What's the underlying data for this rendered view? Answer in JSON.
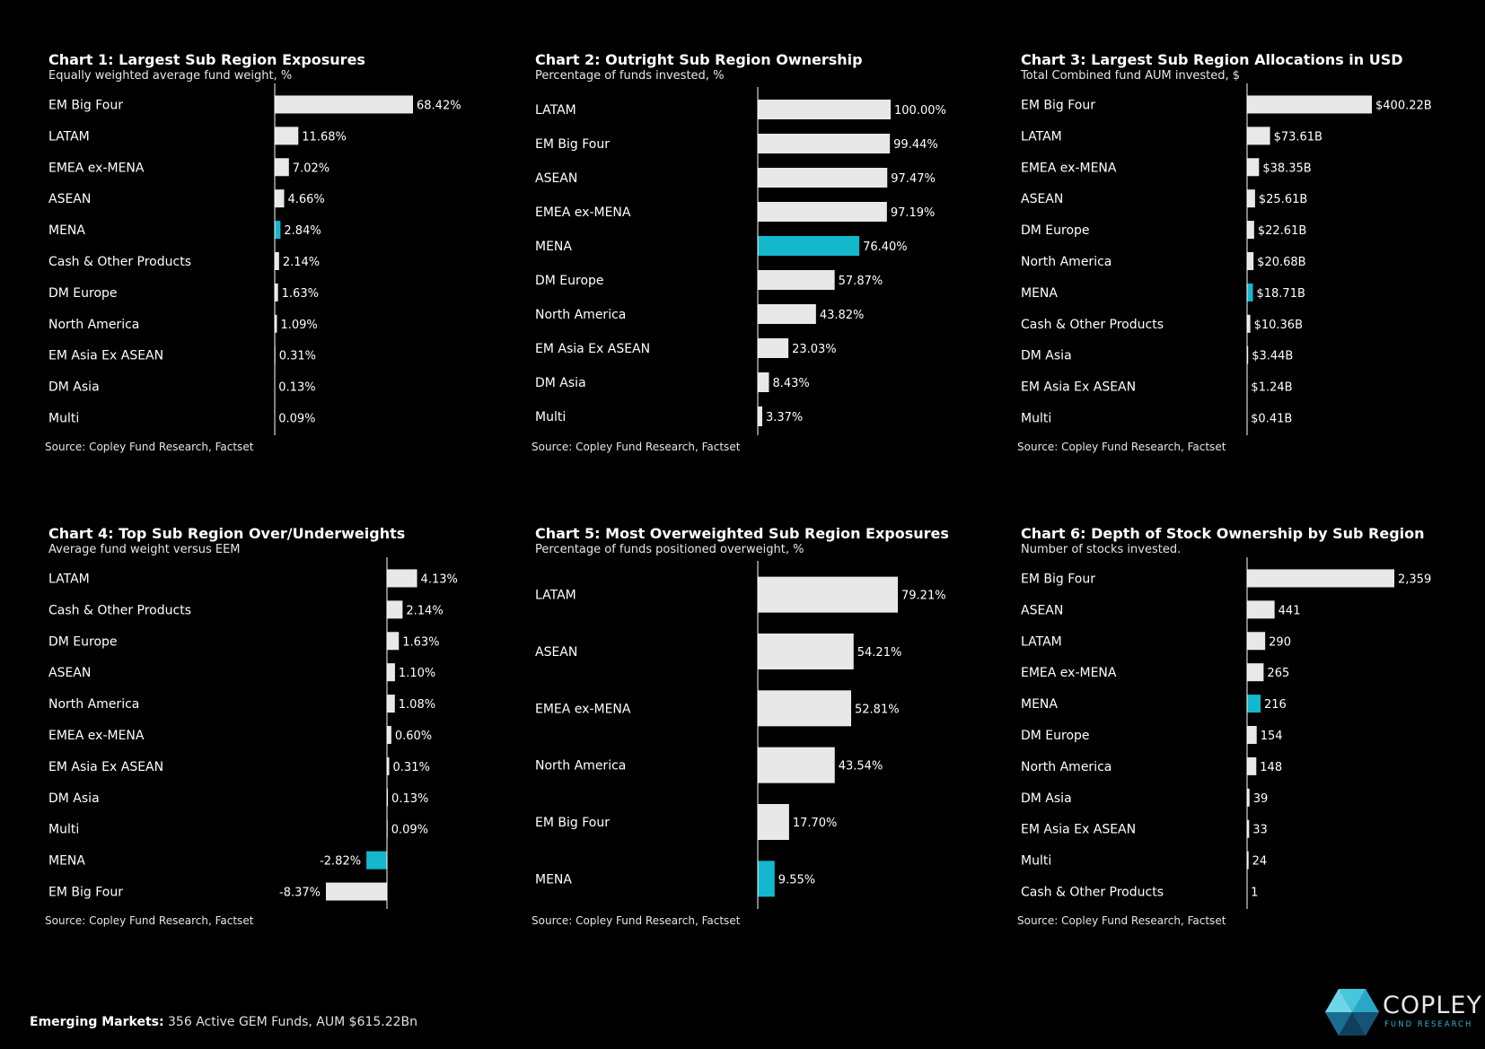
{
  "colors": {
    "bar": "#e8e8e8",
    "highlight": "#14b8cc",
    "axis": "#ffffff",
    "background": "#000000"
  },
  "charts": [
    {
      "title": "Chart 1:  Largest Sub Region Exposures",
      "subtitle": "Equally weighted average fund weight, %",
      "source": "Source:  Copley Fund Research, Factset"
    },
    {
      "title": "Chart 2:  Outright Sub Region Ownership",
      "subtitle": "Percentage of funds invested, %",
      "source": "Source:  Copley Fund Research, Factset"
    },
    {
      "title": "Chart 3:  Largest Sub Region Allocations in USD",
      "subtitle": "Total Combined fund AUM invested, $",
      "source": "Source:  Copley Fund Research, Factset"
    },
    {
      "title": "Chart 4: Top Sub Region Over/Underweights",
      "subtitle": "Average fund weight versus EEM",
      "source": "Source:  Copley Fund Research, Factset"
    },
    {
      "title": "Chart 5:  Most Overweighted Sub Region Exposures",
      "subtitle": "Percentage of funds positioned overweight, %",
      "source": "Source:  Copley Fund Research, Factset"
    },
    {
      "title": "Chart 6:  Depth of Stock Ownership by Sub Region",
      "subtitle": "Number of stocks invested.",
      "source": "Source:  Copley Fund Research, Factset"
    }
  ],
  "chart_data": [
    {
      "type": "bar",
      "orientation": "horizontal",
      "categories": [
        "EM Big Four",
        "LATAM",
        "EMEA ex-MENA",
        "ASEAN",
        "MENA",
        "Cash & Other Products",
        "DM Europe",
        "North America",
        "EM Asia Ex ASEAN",
        "DM Asia",
        "Multi"
      ],
      "values": [
        68.42,
        11.68,
        7.02,
        4.66,
        2.84,
        2.14,
        1.63,
        1.09,
        0.31,
        0.13,
        0.09
      ],
      "labels": [
        "68.42%",
        "11.68%",
        "7.02%",
        "4.66%",
        "2.84%",
        "2.14%",
        "1.63%",
        "1.09%",
        "0.31%",
        "0.13%",
        "0.09%"
      ],
      "highlight": "MENA",
      "xlim": [
        0,
        68.42
      ]
    },
    {
      "type": "bar",
      "orientation": "horizontal",
      "categories": [
        "LATAM",
        "EM Big Four",
        "ASEAN",
        "EMEA ex-MENA",
        "MENA",
        "DM Europe",
        "North America",
        "EM Asia Ex ASEAN",
        "DM Asia",
        "Multi"
      ],
      "values": [
        100.0,
        99.44,
        97.47,
        97.19,
        76.4,
        57.87,
        43.82,
        23.03,
        8.43,
        3.37
      ],
      "labels": [
        "100.00%",
        "99.44%",
        "97.47%",
        "97.19%",
        "76.40%",
        "57.87%",
        "43.82%",
        "23.03%",
        "8.43%",
        "3.37%"
      ],
      "highlight": "MENA",
      "xlim": [
        0,
        100
      ]
    },
    {
      "type": "bar",
      "orientation": "horizontal",
      "categories": [
        "EM Big Four",
        "LATAM",
        "EMEA ex-MENA",
        "ASEAN",
        "DM Europe",
        "North America",
        "MENA",
        "Cash & Other Products",
        "DM Asia",
        "EM Asia Ex ASEAN",
        "Multi"
      ],
      "values": [
        400.22,
        73.61,
        38.35,
        25.61,
        22.61,
        20.68,
        18.71,
        10.36,
        3.44,
        1.24,
        0.41
      ],
      "labels": [
        "$400.22B",
        "$73.61B",
        "$38.35B",
        "$25.61B",
        "$22.61B",
        "$20.68B",
        "$18.71B",
        "$10.36B",
        "$3.44B",
        "$1.24B",
        "$0.41B"
      ],
      "highlight": "MENA",
      "xlim": [
        0,
        400.22
      ]
    },
    {
      "type": "bar",
      "orientation": "horizontal",
      "categories": [
        "LATAM",
        "Cash & Other Products",
        "DM Europe",
        "ASEAN",
        "North America",
        "EMEA ex-MENA",
        "EM Asia Ex ASEAN",
        "DM Asia",
        "Multi",
        "MENA",
        "EM Big Four"
      ],
      "values": [
        4.13,
        2.14,
        1.63,
        1.1,
        1.08,
        0.6,
        0.31,
        0.13,
        0.09,
        -2.82,
        -8.37
      ],
      "labels": [
        "4.13%",
        "2.14%",
        "1.63%",
        "1.10%",
        "1.08%",
        "0.60%",
        "0.31%",
        "0.13%",
        "0.09%",
        "-2.82%",
        "-8.37%"
      ],
      "highlight": "MENA",
      "xlim": [
        -8.37,
        4.13
      ]
    },
    {
      "type": "bar",
      "orientation": "horizontal",
      "categories": [
        "LATAM",
        "ASEAN",
        "EMEA ex-MENA",
        "North America",
        "EM Big Four",
        "MENA"
      ],
      "values": [
        79.21,
        54.21,
        52.81,
        43.54,
        17.7,
        9.55
      ],
      "labels": [
        "79.21%",
        "54.21%",
        "52.81%",
        "43.54%",
        "17.70%",
        "9.55%"
      ],
      "highlight": "MENA",
      "xlim": [
        0,
        79.21
      ]
    },
    {
      "type": "bar",
      "orientation": "horizontal",
      "categories": [
        "EM Big Four",
        "ASEAN",
        "LATAM",
        "EMEA ex-MENA",
        "MENA",
        "DM Europe",
        "North America",
        "DM Asia",
        "EM Asia Ex ASEAN",
        "Multi",
        "Cash & Other Products"
      ],
      "values": [
        2359,
        441,
        290,
        265,
        216,
        154,
        148,
        39,
        33,
        24,
        1
      ],
      "labels": [
        "2,359",
        "441",
        "290",
        "265",
        "216",
        "154",
        "148",
        "39",
        "33",
        "24",
        "1"
      ],
      "highlight": "MENA",
      "xlim": [
        0,
        2359
      ]
    }
  ],
  "footer": {
    "bold": "Emerging Markets:",
    "text": " 356 Active GEM Funds, AUM $615.22Bn"
  },
  "logo": {
    "word": "COPLEY",
    "sub": "FUND RESEARCH"
  }
}
